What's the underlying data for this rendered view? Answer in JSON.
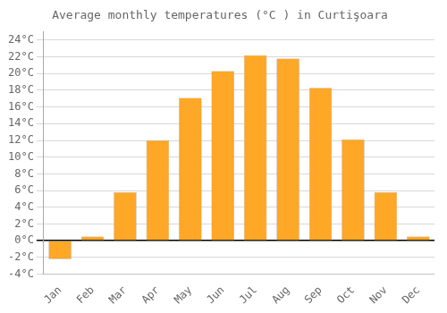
{
  "chart_data": {
    "type": "bar",
    "title": "Average monthly temperatures (°C ) in Curtişoara",
    "categories": [
      "Jan",
      "Feb",
      "Mar",
      "Apr",
      "May",
      "Jun",
      "Jul",
      "Aug",
      "Sep",
      "Oct",
      "Nov",
      "Dec"
    ],
    "values": [
      -2.2,
      0.5,
      5.8,
      12.0,
      17.1,
      20.3,
      22.2,
      21.8,
      18.3,
      12.1,
      5.8,
      0.5
    ],
    "color": "#FFA726",
    "ylim": [
      -4,
      25
    ],
    "yticks": [
      {
        "value": -4,
        "label": "-4°C"
      },
      {
        "value": -2,
        "label": "-2°C"
      },
      {
        "value": 0,
        "label": "0°C"
      },
      {
        "value": 2,
        "label": "2°C"
      },
      {
        "value": 4,
        "label": "4°C"
      },
      {
        "value": 6,
        "label": "6°C"
      },
      {
        "value": 8,
        "label": "8°C"
      },
      {
        "value": 10,
        "label": "10°C"
      },
      {
        "value": 12,
        "label": "12°C"
      },
      {
        "value": 14,
        "label": "14°C"
      },
      {
        "value": 16,
        "label": "16°C"
      },
      {
        "value": 18,
        "label": "18°C"
      },
      {
        "value": 20,
        "label": "20°C"
      },
      {
        "value": 22,
        "label": "22°C"
      },
      {
        "value": 24,
        "label": "24°C"
      }
    ],
    "grid": true
  }
}
